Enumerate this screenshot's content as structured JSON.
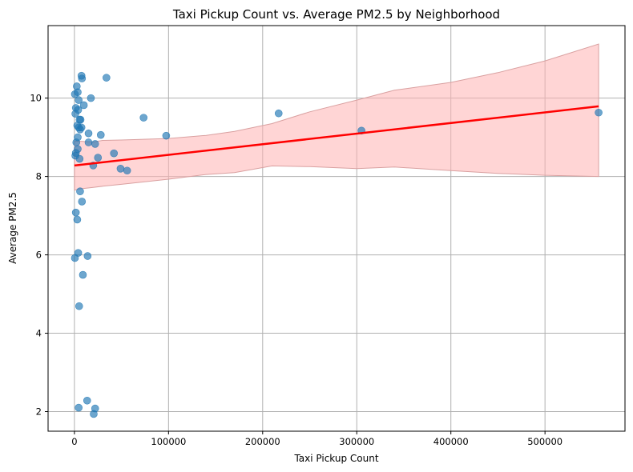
{
  "chart_data": {
    "type": "scatter",
    "title": "Taxi Pickup Count vs. Average PM2.5 by Neighborhood",
    "xlabel": "Taxi Pickup Count",
    "ylabel": "Average PM2.5",
    "xlim": [
      -28000,
      585000
    ],
    "ylim": [
      1.5,
      11.85
    ],
    "xticks": [
      0,
      100000,
      200000,
      300000,
      400000,
      500000
    ],
    "yticks": [
      2,
      4,
      6,
      8,
      10
    ],
    "grid": true,
    "colors": {
      "points": "#1f77b4",
      "regression_line": "#ff0000",
      "confidence_band": "#ffb3b3"
    },
    "points": [
      {
        "x": 500,
        "y": 10.1
      },
      {
        "x": 1500,
        "y": 9.75
      },
      {
        "x": 1000,
        "y": 9.6
      },
      {
        "x": 2500,
        "y": 10.3
      },
      {
        "x": 3500,
        "y": 10.15
      },
      {
        "x": 4500,
        "y": 9.95
      },
      {
        "x": 4000,
        "y": 9.7
      },
      {
        "x": 5500,
        "y": 9.45
      },
      {
        "x": 6500,
        "y": 9.45
      },
      {
        "x": 3000,
        "y": 9.3
      },
      {
        "x": 4500,
        "y": 9.25
      },
      {
        "x": 6000,
        "y": 9.2
      },
      {
        "x": 7500,
        "y": 9.25
      },
      {
        "x": 7500,
        "y": 10.57
      },
      {
        "x": 8000,
        "y": 10.5
      },
      {
        "x": 10000,
        "y": 9.82
      },
      {
        "x": 17500,
        "y": 10.0
      },
      {
        "x": 34000,
        "y": 10.52
      },
      {
        "x": 2000,
        "y": 8.87
      },
      {
        "x": 3500,
        "y": 9.0
      },
      {
        "x": 3500,
        "y": 8.7
      },
      {
        "x": 1500,
        "y": 8.6
      },
      {
        "x": 1000,
        "y": 8.53
      },
      {
        "x": 5500,
        "y": 8.45
      },
      {
        "x": 15000,
        "y": 9.1
      },
      {
        "x": 15000,
        "y": 8.87
      },
      {
        "x": 22000,
        "y": 8.83
      },
      {
        "x": 28000,
        "y": 9.06
      },
      {
        "x": 20000,
        "y": 8.28
      },
      {
        "x": 25000,
        "y": 8.48
      },
      {
        "x": 42000,
        "y": 8.59
      },
      {
        "x": 49000,
        "y": 8.2
      },
      {
        "x": 56000,
        "y": 8.15
      },
      {
        "x": 73500,
        "y": 9.5
      },
      {
        "x": 97500,
        "y": 9.04
      },
      {
        "x": 217000,
        "y": 9.61
      },
      {
        "x": 305000,
        "y": 9.17
      },
      {
        "x": 557000,
        "y": 9.63
      },
      {
        "x": 6000,
        "y": 7.62
      },
      {
        "x": 8000,
        "y": 7.36
      },
      {
        "x": 1500,
        "y": 7.08
      },
      {
        "x": 3000,
        "y": 6.9
      },
      {
        "x": 4000,
        "y": 6.05
      },
      {
        "x": 500,
        "y": 5.92
      },
      {
        "x": 14000,
        "y": 5.97
      },
      {
        "x": 9000,
        "y": 5.49
      },
      {
        "x": 5000,
        "y": 4.69
      },
      {
        "x": 4500,
        "y": 2.1
      },
      {
        "x": 13500,
        "y": 2.28
      },
      {
        "x": 22000,
        "y": 2.08
      },
      {
        "x": 20500,
        "y": 1.94
      }
    ],
    "regression": {
      "x": [
        0,
        557000
      ],
      "y": [
        8.28,
        9.79
      ]
    },
    "confidence_band": {
      "x": [
        0,
        5000,
        20000,
        30000,
        50000,
        100000,
        140000,
        170000,
        210000,
        250000,
        300000,
        340000,
        400000,
        450000,
        500000,
        557000
      ],
      "lower": [
        7.65,
        7.68,
        7.72,
        7.75,
        7.8,
        7.93,
        8.05,
        8.1,
        8.27,
        8.25,
        8.2,
        8.24,
        8.15,
        8.08,
        8.03,
        8.0
      ],
      "upper": [
        8.9,
        8.9,
        8.88,
        8.92,
        8.93,
        8.97,
        9.05,
        9.15,
        9.35,
        9.65,
        9.95,
        10.2,
        10.4,
        10.65,
        10.95,
        11.38
      ]
    }
  }
}
